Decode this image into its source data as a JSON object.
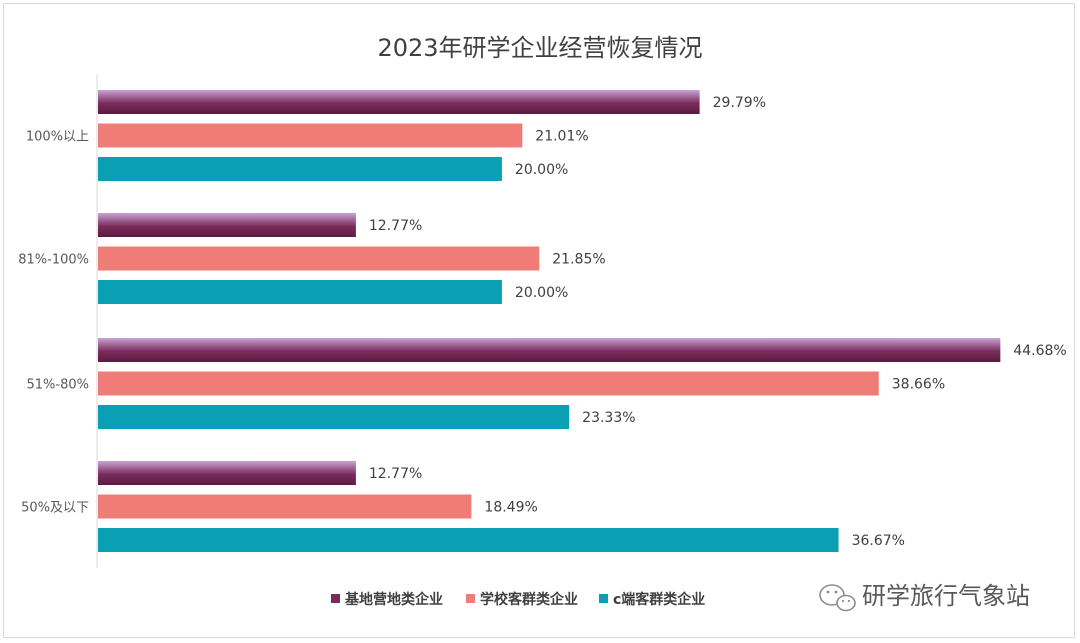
{
  "chart_data": {
    "type": "bar",
    "orientation": "horizontal",
    "title": "2023年研学企业经营恢复情况",
    "categories": [
      "100%以上",
      "81%-100%",
      "51%-80%",
      "50%及以下"
    ],
    "series": [
      {
        "name": "基地营地类企业",
        "color": "#7a2d5c",
        "values": [
          29.79,
          12.77,
          44.68,
          12.77
        ],
        "labels": [
          "29.79%",
          "12.77%",
          "44.68%",
          "12.77%"
        ]
      },
      {
        "name": "学校客群类企业",
        "color": "#f07c78",
        "values": [
          21.01,
          21.85,
          38.66,
          18.49
        ],
        "labels": [
          "21.01%",
          "21.85%",
          "38.66%",
          "18.49%"
        ]
      },
      {
        "name": "c端客群类企业",
        "color": "#0a9fb2",
        "values": [
          20.0,
          20.0,
          23.33,
          36.67
        ],
        "labels": [
          "20.00%",
          "20.00%",
          "23.33%",
          "36.67%"
        ]
      }
    ],
    "xlim": [
      0,
      46
    ],
    "grid": false,
    "legend_position": "bottom"
  },
  "watermark": {
    "text": "研学旅行气象站",
    "icon": "wechat-icon"
  }
}
